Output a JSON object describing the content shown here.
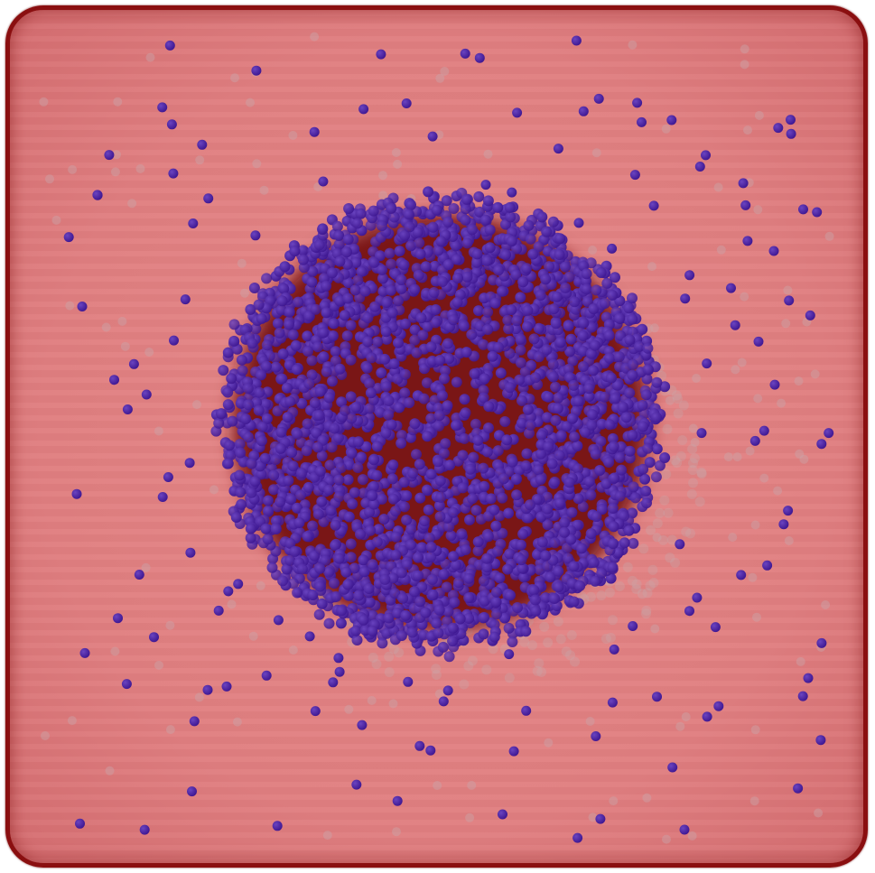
{
  "colors": {
    "background": "#ffffff",
    "box_fill": "#e28285",
    "box_border": "#8a0f10",
    "cluster_shadow": "#7a1416",
    "particle": "#3d1690",
    "particle_highlight": "#6a44c0",
    "faint_particle": "#c9a5a8"
  },
  "scene": {
    "description_type": "simulation-render",
    "cluster_particle_count": 2600,
    "free_particle_count": 130,
    "faint_particle_count": 160
  }
}
